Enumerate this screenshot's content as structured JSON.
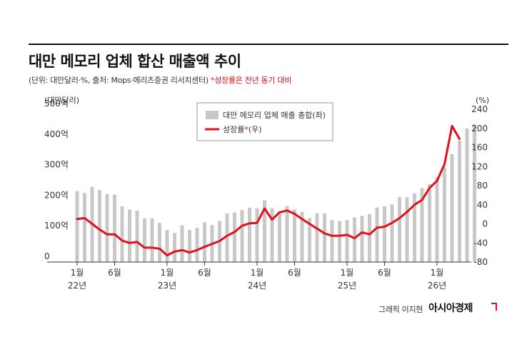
{
  "header": {
    "title": "대만 메모리 업체 합산 매출액 추이",
    "subtitle": "(단위: 대만달러·%, 출처: Mops·메리츠증권 리서치센터)",
    "subtitle_note": "*성장률은 전년 동기 대비"
  },
  "footer": {
    "credit": "그래픽 이지현",
    "brand": "아시아경제"
  },
  "chart_data": {
    "type": "bar+line",
    "left_axis": {
      "unit_label": "(대만달러)",
      "ticks": [
        "0",
        "100억",
        "200억",
        "300억",
        "400억",
        "500억"
      ],
      "tick_values": [
        0,
        100,
        200,
        300,
        400,
        500
      ],
      "range": [
        0,
        500
      ]
    },
    "right_axis": {
      "unit_label": "(%)",
      "ticks": [
        "-80",
        "-40",
        "0",
        "40",
        "80",
        "120",
        "160",
        "200",
        "240"
      ],
      "tick_values": [
        -80,
        -40,
        0,
        40,
        80,
        120,
        160,
        200,
        240
      ],
      "range": [
        -80,
        240
      ]
    },
    "x_tick_labels": [
      {
        "index": 0,
        "month": "1월",
        "year": "22년"
      },
      {
        "index": 5,
        "month": "6월",
        "year": ""
      },
      {
        "index": 12,
        "month": "1월",
        "year": "23년"
      },
      {
        "index": 17,
        "month": "6월",
        "year": ""
      },
      {
        "index": 24,
        "month": "1월",
        "year": "24년"
      },
      {
        "index": 29,
        "month": "6월",
        "year": ""
      },
      {
        "index": 36,
        "month": "1월",
        "year": "25년"
      },
      {
        "index": 41,
        "month": "6월",
        "year": ""
      },
      {
        "index": 48,
        "month": "1월",
        "year": "26년"
      }
    ],
    "legend": {
      "position": "top-center",
      "bar_label": "대만 메모리 업체 매출 총합(좌)",
      "line_label_prefix": "성장률",
      "line_label_mark": "*",
      "line_label_suffix": "(우)"
    },
    "colors": {
      "bar": "#c8c8c8",
      "line": "#e0101e"
    },
    "series": [
      {
        "name": "대만 메모리 업체 매출 총합(좌)",
        "axis": "left",
        "type": "bar",
        "values": [
          232,
          226,
          246,
          236,
          223,
          221,
          182,
          172,
          168,
          143,
          143,
          128,
          105,
          95,
          120,
          105,
          112,
          130,
          121,
          134,
          159,
          162,
          170,
          178,
          176,
          202,
          176,
          166,
          183,
          172,
          164,
          144,
          159,
          159,
          137,
          134,
          137,
          146,
          151,
          157,
          179,
          183,
          188,
          213,
          212,
          225,
          242,
          255,
          277,
          310,
          353,
          397,
          437,
          450
        ]
      },
      {
        "name": "성장률",
        "axis": "right",
        "type": "line",
        "values": [
          10,
          12,
          0,
          -12,
          -22,
          -22,
          -35,
          -40,
          -38,
          -50,
          -50,
          -52,
          -66,
          -58,
          -55,
          -60,
          -55,
          -48,
          -42,
          -36,
          -25,
          -17,
          -4,
          1,
          2,
          32,
          9,
          24,
          28,
          21,
          10,
          0,
          -10,
          -20,
          -25,
          -25,
          -23,
          -30,
          -18,
          -22,
          -8,
          -6,
          2,
          12,
          25,
          40,
          50,
          75,
          90,
          125,
          205,
          178
        ]
      }
    ]
  }
}
